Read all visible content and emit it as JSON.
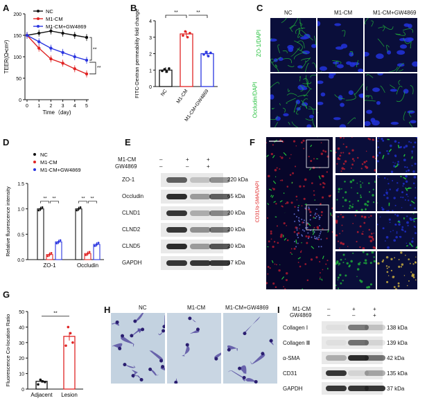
{
  "panels": {
    "A": {
      "label": "A"
    },
    "B": {
      "label": "B"
    },
    "C": {
      "label": "C"
    },
    "D": {
      "label": "D"
    },
    "E": {
      "label": "E"
    },
    "F": {
      "label": "F"
    },
    "G": {
      "label": "G"
    },
    "H": {
      "label": "H"
    },
    "I": {
      "label": "I"
    }
  },
  "groups": [
    "NC",
    "M1-CM",
    "M1-CM+GW4869"
  ],
  "colors": {
    "NC": "#111111",
    "M1-CM": "#e02424",
    "M1-CM+GW4869": "#2a35e0",
    "green": "#22c03a",
    "blue": "#2233dd"
  },
  "chart_data": [
    {
      "panel": "A",
      "type": "line",
      "ylabel": "TEER(Ω•cm²)",
      "xlabel": "Time（day)",
      "x": [
        0,
        1,
        2,
        3,
        4,
        5
      ],
      "ylim": [
        0,
        200
      ],
      "yticks": [
        0,
        50,
        100,
        150,
        200
      ],
      "series": [
        {
          "name": "NC",
          "values": [
            150,
            155,
            160,
            155,
            150,
            145
          ]
        },
        {
          "name": "M1-CM",
          "values": [
            150,
            120,
            95,
            85,
            72,
            60
          ]
        },
        {
          "name": "M1-CM+GW4869",
          "values": [
            150,
            135,
            120,
            110,
            100,
            92
          ]
        }
      ],
      "sig": [
        "**",
        "**"
      ]
    },
    {
      "panel": "B",
      "type": "bar",
      "ylabel": "FITC-Dextran permeability fold change",
      "categories": [
        "NC",
        "M1-CM",
        "M1-CM+GW4869"
      ],
      "values": [
        1.0,
        3.2,
        2.0
      ],
      "ylim": [
        0,
        4
      ],
      "yticks": [
        0,
        1,
        2,
        3,
        4
      ],
      "sig": [
        "**",
        "**"
      ]
    },
    {
      "panel": "D",
      "type": "bar",
      "ylabel": "Relative fluorescence intensity",
      "categories": [
        "ZO-1",
        "Occludin"
      ],
      "series": [
        {
          "name": "NC",
          "values": [
            1.0,
            1.0
          ]
        },
        {
          "name": "M1-CM",
          "values": [
            0.1,
            0.12
          ]
        },
        {
          "name": "M1-CM+GW4869",
          "values": [
            0.35,
            0.3
          ]
        }
      ],
      "ylim": [
        0,
        1.5
      ],
      "yticks": [
        "0.0",
        "0.5",
        "1.0",
        "1.5"
      ],
      "sig": [
        "**",
        "**",
        "**",
        "**"
      ]
    },
    {
      "panel": "G",
      "type": "bar",
      "ylabel": "Fluorescence Co-location Ratio",
      "categories": [
        "Adjacent",
        "Lesion"
      ],
      "values": [
        5,
        34
      ],
      "ylim": [
        0,
        50
      ],
      "yticks": [
        0,
        10,
        20,
        30,
        40,
        50
      ],
      "sig": "**"
    }
  ],
  "panel_c": {
    "headers": [
      "NC",
      "M1-CM",
      "M1-CM+GW4869"
    ],
    "rows": [
      "ZO-1/DAPI",
      "Occludin/DAPI"
    ]
  },
  "panel_e": {
    "conditions": [
      {
        "name": "M1-CM",
        "marks": [
          "–",
          "+",
          "+"
        ]
      },
      {
        "name": "GW4869",
        "marks": [
          "–",
          "–",
          "+"
        ]
      }
    ],
    "rows": [
      {
        "protein": "ZO-1",
        "size": "220 kDa"
      },
      {
        "protein": "Occludin",
        "size": "65 kDa"
      },
      {
        "protein": "CLND1",
        "size": "20 kDa"
      },
      {
        "protein": "CLND2",
        "size": "20 kDa"
      },
      {
        "protein": "CLND5",
        "size": "20 kDa"
      },
      {
        "protein": "GAPDH",
        "size": "37 kDa"
      }
    ]
  },
  "panel_f": {
    "ylabel": "CD31/α-SMA/DAPI"
  },
  "panel_h": {
    "headers": [
      "NC",
      "M1-CM",
      "M1-CM+GW4869"
    ]
  },
  "panel_i": {
    "conditions": [
      {
        "name": "M1-CM",
        "marks": [
          "–",
          "+",
          "+"
        ]
      },
      {
        "name": "GW4869",
        "marks": [
          "–",
          "–",
          "+"
        ]
      }
    ],
    "rows": [
      {
        "protein": "Collagen Ⅰ",
        "size": "138 kDa"
      },
      {
        "protein": "Collagen Ⅲ",
        "size": "139 kDa"
      },
      {
        "protein": "α-SMA",
        "size": "42 kDa"
      },
      {
        "protein": "CD31",
        "size": "135 kDa"
      },
      {
        "protein": "GAPDH",
        "size": "37 kDa"
      }
    ]
  }
}
